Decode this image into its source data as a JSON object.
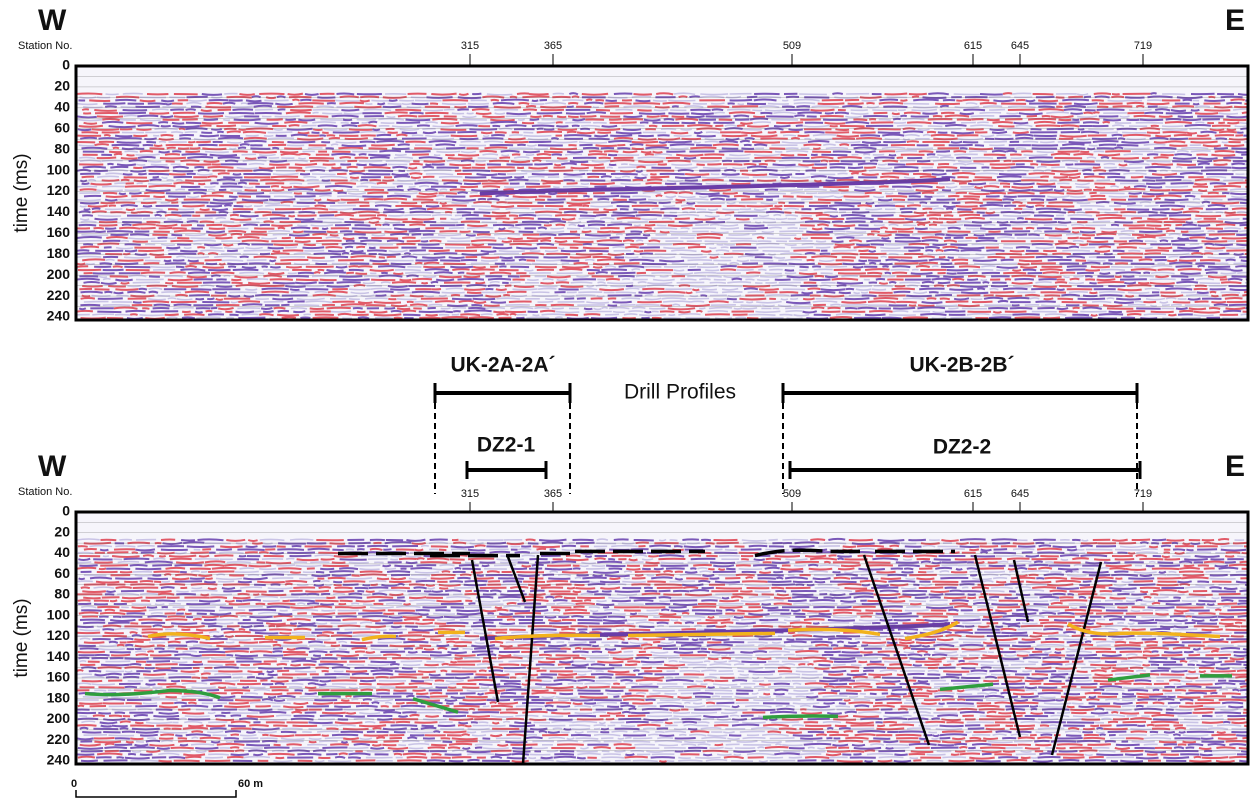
{
  "panels": [
    {
      "west": "W",
      "east": "E",
      "station_label": "Station No.",
      "stations": [
        "315",
        "365",
        "509",
        "615",
        "645",
        "719"
      ],
      "y_axis_label": "time (ms)",
      "yticks": [
        "0",
        "20",
        "40",
        "60",
        "80",
        "100",
        "120",
        "140",
        "160",
        "180",
        "200",
        "220",
        "240"
      ]
    },
    {
      "west": "W",
      "east": "E",
      "station_label": "Station No.",
      "stations": [
        "315",
        "365",
        "509",
        "615",
        "645",
        "719"
      ],
      "y_axis_label": "time (ms)",
      "yticks": [
        "0",
        "20",
        "40",
        "60",
        "80",
        "100",
        "120",
        "140",
        "160",
        "180",
        "200",
        "220",
        "240"
      ]
    }
  ],
  "drill_profiles": {
    "label": "Drill Profiles",
    "profiles": [
      "UK-2A-2A´",
      "DZ2-1",
      "UK-2B-2B´",
      "DZ2-2"
    ]
  },
  "scale_bar": {
    "start": "0",
    "end": "60 m"
  }
}
